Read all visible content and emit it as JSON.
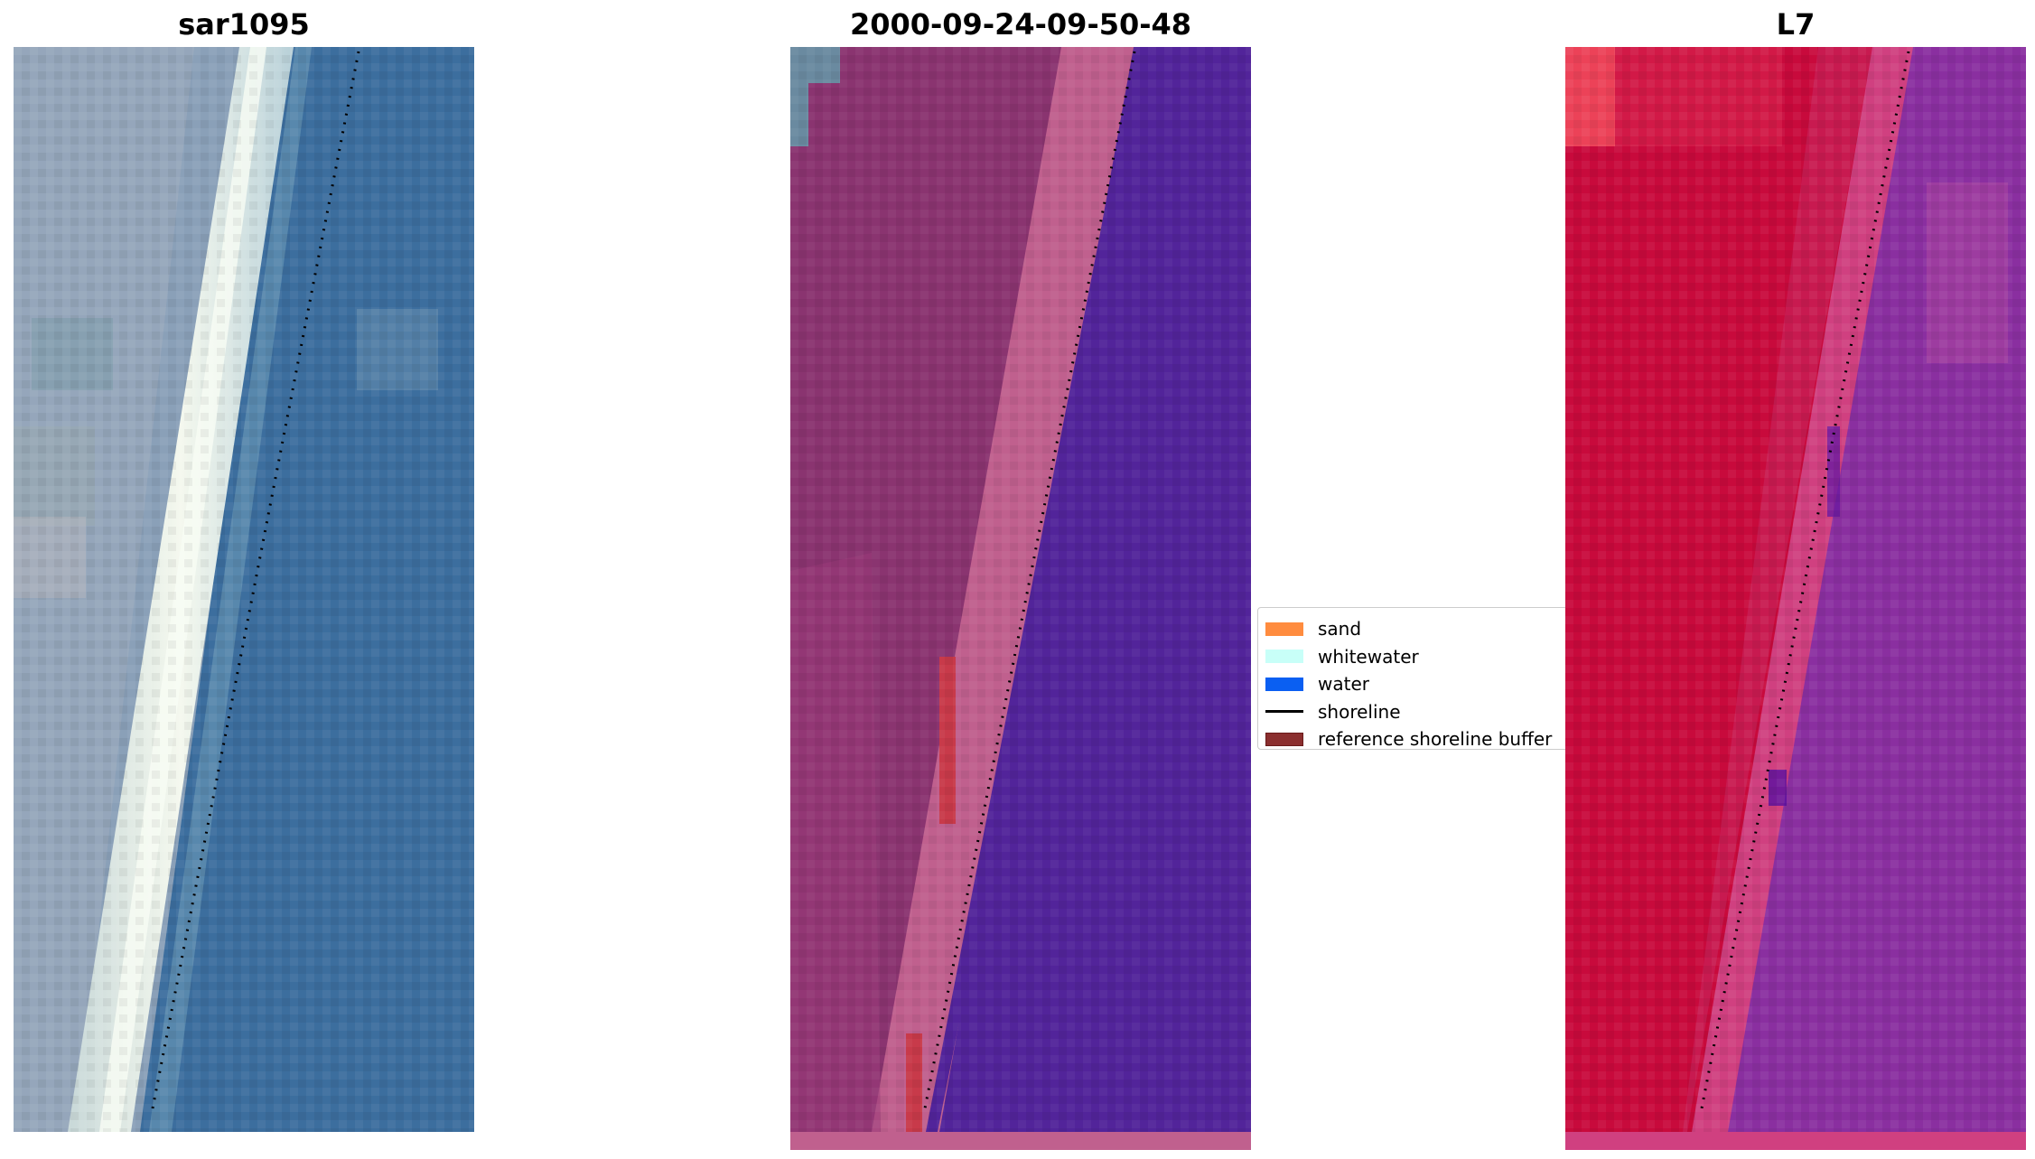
{
  "panels": [
    {
      "title": "sar1095"
    },
    {
      "title": "2000-09-24-09-50-48"
    },
    {
      "title": "L7"
    }
  ],
  "legend": {
    "items": [
      {
        "label": "sand",
        "color": "#ff8c3f",
        "kind": "patch"
      },
      {
        "label": "whitewater",
        "color": "#c8fff8",
        "kind": "patch"
      },
      {
        "label": "water",
        "color": "#0a5ff2",
        "kind": "patch"
      },
      {
        "label": "shoreline",
        "color": "#000000",
        "kind": "line"
      },
      {
        "label": "reference shoreline buffer",
        "color": "#8b2020",
        "kind": "patch"
      }
    ]
  },
  "colors": {
    "rgb_water": "#3c6e9e",
    "rgb_land": "#8aa0b8",
    "rgb_sand": "#e8f0e0",
    "class_land": "#8a3470",
    "class_beach": "#c0608e",
    "class_water": "#52249a",
    "class_buffer": "#c83a4a",
    "mndwi_land": "#c80a3c",
    "mndwi_water": "#8a2fa0",
    "mndwi_beach": "#d04080"
  }
}
